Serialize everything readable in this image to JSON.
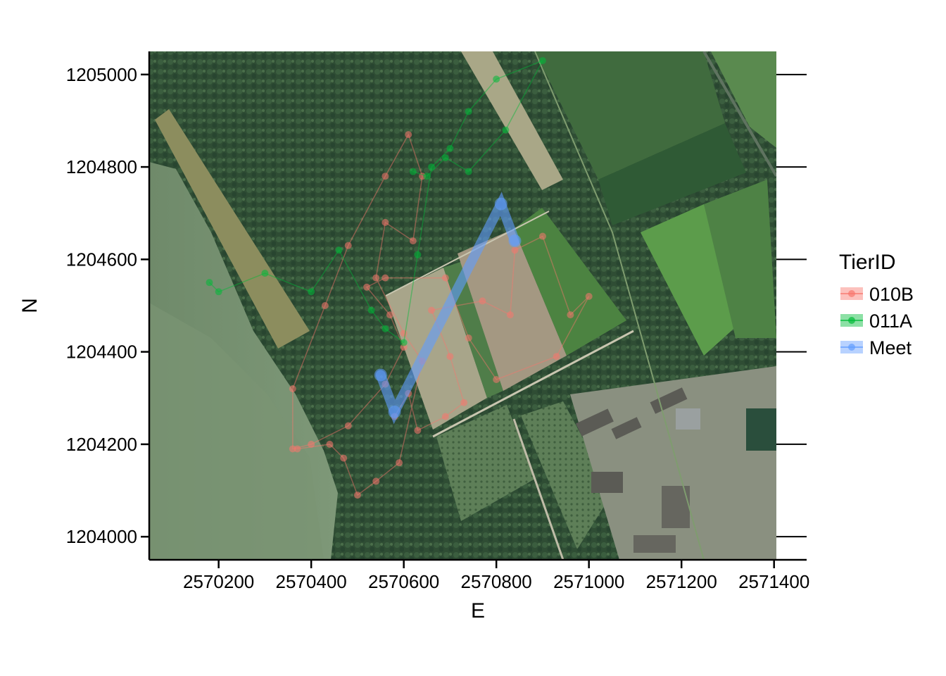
{
  "map": {
    "xlabel": "E",
    "ylabel": "N",
    "xlim": [
      2570050,
      2571405
    ],
    "ylim": [
      1203950,
      1205050
    ],
    "x_ticks": [
      2570200,
      2570400,
      2570600,
      2570800,
      2571000,
      2571200,
      2571400
    ],
    "y_ticks": [
      1204000,
      1204200,
      1204400,
      1204600,
      1204800,
      1205000
    ],
    "basemap": "aerial-imagery"
  },
  "legend": {
    "title": "TierID",
    "placement": "right",
    "items": [
      {
        "label": "010B",
        "color": "#f8766d"
      },
      {
        "label": "011A",
        "color": "#00ba38"
      },
      {
        "label": "Meet",
        "color": "#619cff"
      }
    ]
  },
  "tracks": [
    {
      "id": "010B",
      "color": "#f8766d",
      "points": [
        [
          2570580,
          1204260
        ],
        [
          2570610,
          1204310
        ],
        [
          2570630,
          1204230
        ],
        [
          2570690,
          1204260
        ],
        [
          2570730,
          1204290
        ],
        [
          2570700,
          1204390
        ],
        [
          2570660,
          1204490
        ],
        [
          2570770,
          1204510
        ],
        [
          2570830,
          1204480
        ],
        [
          2570840,
          1204620
        ],
        [
          2570900,
          1204650
        ],
        [
          2570960,
          1204480
        ],
        [
          2571000,
          1204520
        ],
        [
          2570930,
          1204390
        ],
        [
          2570800,
          1204340
        ],
        [
          2570740,
          1204430
        ],
        [
          2570690,
          1204560
        ],
        [
          2570560,
          1204560
        ],
        [
          2570520,
          1204540
        ],
        [
          2570570,
          1204480
        ],
        [
          2570600,
          1204410
        ],
        [
          2570560,
          1204330
        ],
        [
          2570480,
          1204240
        ],
        [
          2570400,
          1204200
        ],
        [
          2570360,
          1204190
        ],
        [
          2570360,
          1204320
        ],
        [
          2570430,
          1204500
        ],
        [
          2570480,
          1204630
        ],
        [
          2570560,
          1204780
        ],
        [
          2570610,
          1204870
        ],
        [
          2570640,
          1204780
        ],
        [
          2570620,
          1204640
        ],
        [
          2570560,
          1204680
        ],
        [
          2570540,
          1204560
        ],
        [
          2570600,
          1204440
        ],
        [
          2570640,
          1204380
        ],
        [
          2570590,
          1204160
        ],
        [
          2570540,
          1204120
        ],
        [
          2570500,
          1204090
        ],
        [
          2570470,
          1204170
        ],
        [
          2570440,
          1204200
        ],
        [
          2570370,
          1204190
        ]
      ]
    },
    {
      "id": "011A",
      "color": "#00ba38",
      "points": [
        [
          2570180,
          1204550
        ],
        [
          2570200,
          1204530
        ],
        [
          2570300,
          1204570
        ],
        [
          2570400,
          1204530
        ],
        [
          2570460,
          1204620
        ],
        [
          2570530,
          1204490
        ],
        [
          2570560,
          1204450
        ],
        [
          2570600,
          1204420
        ],
        [
          2570630,
          1204610
        ],
        [
          2570660,
          1204800
        ],
        [
          2570700,
          1204840
        ],
        [
          2570740,
          1204920
        ],
        [
          2570800,
          1204990
        ],
        [
          2570900,
          1205030
        ],
        [
          2570820,
          1204880
        ],
        [
          2570740,
          1204790
        ],
        [
          2570690,
          1204820
        ],
        [
          2570650,
          1204780
        ],
        [
          2570620,
          1204790
        ]
      ]
    },
    {
      "id": "Meet",
      "color": "#619cff",
      "points": [
        [
          2570550,
          1204350
        ],
        [
          2570580,
          1204270
        ],
        [
          2570810,
          1204720
        ],
        [
          2570840,
          1204640
        ]
      ]
    }
  ]
}
